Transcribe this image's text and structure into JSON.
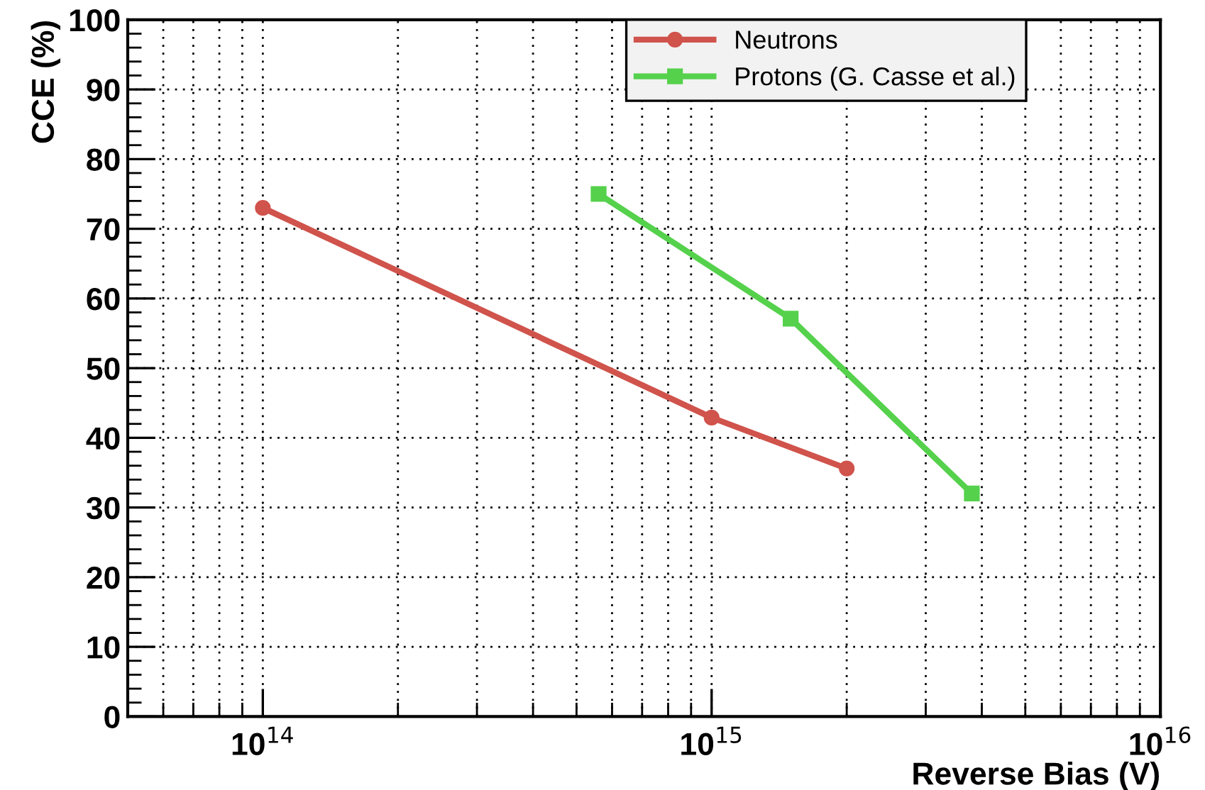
{
  "chart_data": {
    "type": "line",
    "xlabel": "Reverse Bias (V)",
    "ylabel": "CCE (%)",
    "log": "x",
    "xlim": [
      50000000000000.0,
      1e+16
    ],
    "xticks": [
      {
        "value": 100000000000000.0,
        "label": "10$^{14}$"
      },
      {
        "value": 1000000000000000.0,
        "label": "10$^{15}$"
      },
      {
        "value": 1e+16,
        "label": "10$^{16}$"
      }
    ],
    "ylim": [
      0,
      100
    ],
    "yticks": [
      0,
      10,
      20,
      30,
      40,
      50,
      60,
      70,
      80,
      90,
      100
    ],
    "grid": true,
    "legend": "top right",
    "line_style": "solid",
    "series": [
      {
        "name": "Neutrons",
        "color": "#d0534c",
        "marker": "circle",
        "x": [
          100000000000000.0,
          1000000000000000.0,
          2000000000000000.0
        ],
        "values": [
          73,
          42.9,
          35.6
        ]
      },
      {
        "name": "Protons (G. Casse et al.)",
        "color": "#55d14c",
        "marker": "square",
        "x": [
          560000000000000.0,
          1500000000000000.0,
          3800000000000000.0
        ],
        "values": [
          75,
          57.1,
          32
        ]
      }
    ]
  }
}
